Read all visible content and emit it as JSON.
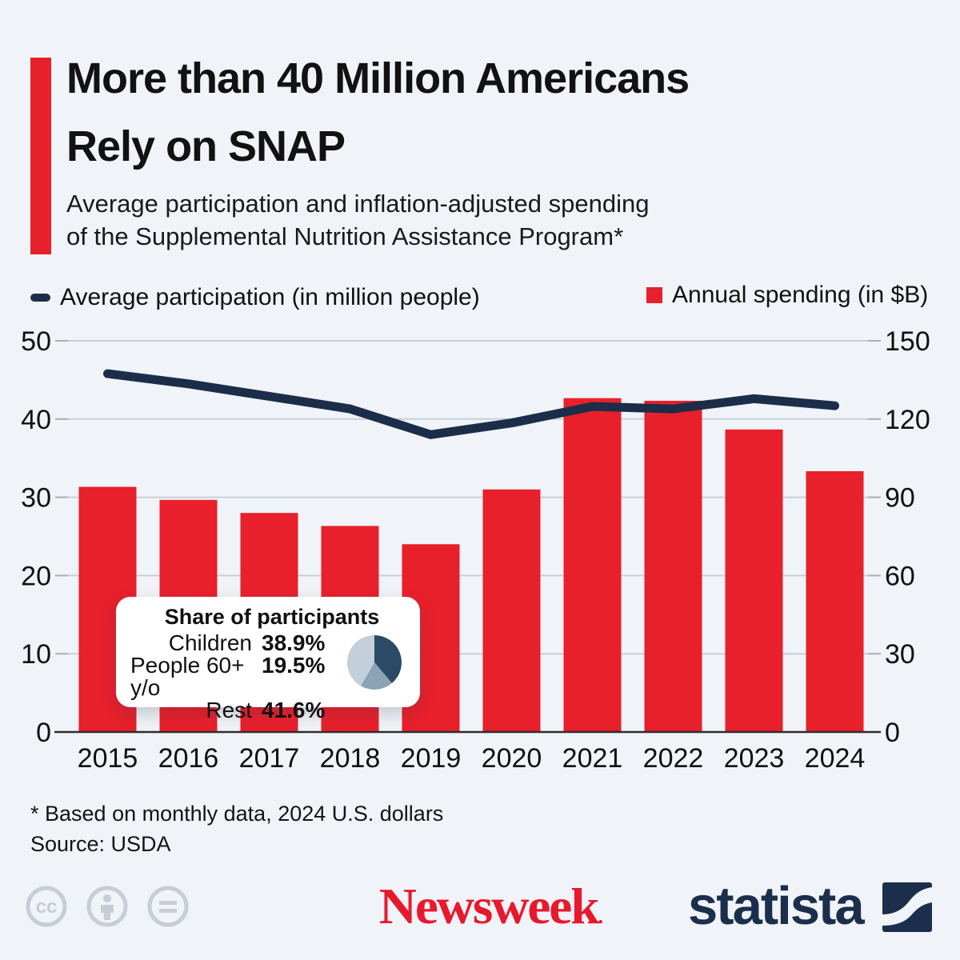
{
  "header": {
    "title": "More than 40 Million Americans\nRely on SNAP",
    "subtitle": "Average participation and inflation-adjusted spending\nof the Supplemental Nutrition Assistance Program*"
  },
  "legend": {
    "participation_label": "Average participation (in million people)",
    "spending_label": "Annual spending (in $B)"
  },
  "chart_data": {
    "type": "bar",
    "title": "More than 40 Million Americans Rely on SNAP",
    "categories": [
      "2015",
      "2016",
      "2017",
      "2018",
      "2019",
      "2020",
      "2021",
      "2022",
      "2023",
      "2024"
    ],
    "series": [
      {
        "name": "Average participation (in million people)",
        "type": "line",
        "axis": "left",
        "color": "#1b2d49",
        "values": [
          45.8,
          44.5,
          42.9,
          41.3,
          38.0,
          39.5,
          41.6,
          41.3,
          42.6,
          41.7
        ]
      },
      {
        "name": "Annual spending (in $B)",
        "type": "bar",
        "axis": "right",
        "color": "#e8202c",
        "values": [
          94,
          89,
          84,
          79,
          72,
          93,
          128,
          127,
          116,
          100
        ]
      }
    ],
    "left_axis": {
      "ylim": [
        0,
        50
      ],
      "ticks": [
        0,
        10,
        20,
        30,
        40,
        50
      ]
    },
    "right_axis": {
      "ylim": [
        0,
        150
      ],
      "ticks": [
        0,
        30,
        60,
        90,
        120,
        150
      ]
    },
    "grid": true,
    "legend_position": "top"
  },
  "tooltip": {
    "title": "Share of participants",
    "rows": [
      {
        "label": "Children",
        "value": "38.9%"
      },
      {
        "label": "People 60+ y/o",
        "value": "19.5%"
      },
      {
        "label": "Rest",
        "value": "41.6%"
      }
    ],
    "pie": {
      "values": [
        38.9,
        19.5,
        41.6
      ],
      "colors": [
        "#2b4a66",
        "#8ba3b5",
        "#c3cfd9"
      ]
    }
  },
  "footnote": "* Based on monthly data, 2024 U.S. dollars",
  "source": "Source: USDA",
  "footer": {
    "newsweek": "Newsweek",
    "newsweek_mark": ".",
    "statista": "statista"
  },
  "colors": {
    "background": "#f0f3f7",
    "accent_red": "#e8202c",
    "line_navy": "#1b2d49",
    "grid": "#c9cfd7",
    "axis_text": "#111111",
    "statista_navy": "#1b2f4d",
    "license_gray": "#c7cdd6"
  }
}
